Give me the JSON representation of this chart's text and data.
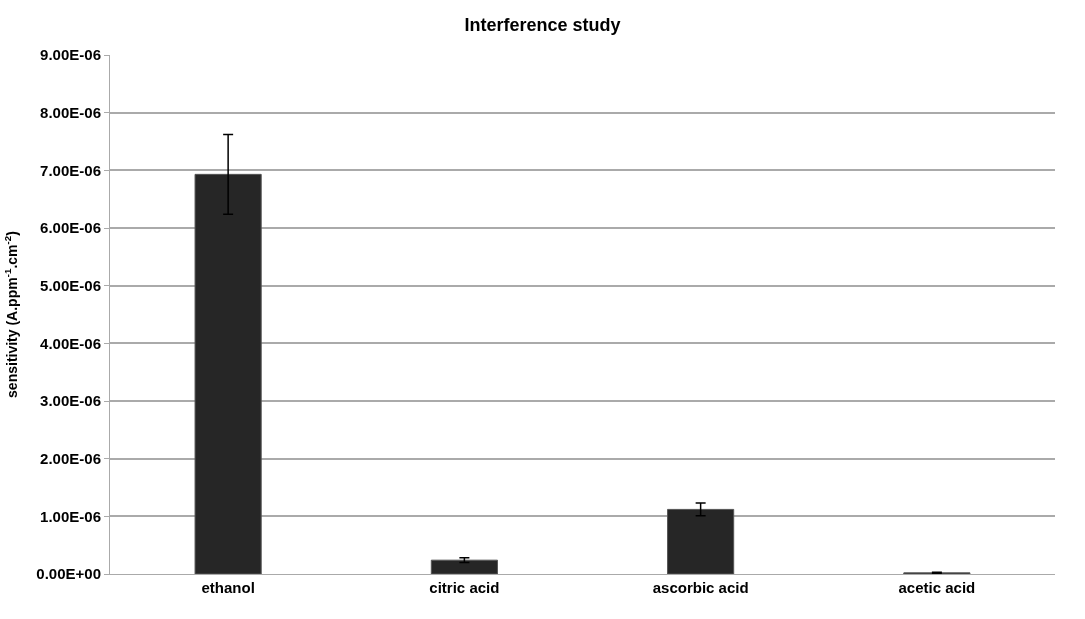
{
  "chart_data": {
    "type": "bar",
    "title": "Interference study",
    "ylabel": "sensitivity (A.ppm$^{-1}$.cm$^{-2}$)",
    "categories": [
      "ethanol",
      "citric acid",
      "ascorbic acid",
      "acetic acid"
    ],
    "values": [
      6.93e-06,
      2.4e-07,
      1.12e-06,
      2e-08
    ],
    "errors": [
      6.9e-07,
      4e-08,
      1.1e-07,
      1e-08
    ],
    "color": "#262626",
    "ylim": [
      0,
      9e-06
    ],
    "yticks": [
      {
        "value": 0,
        "label": "0.00E+00"
      },
      {
        "value": 1e-06,
        "label": "1.00E-06"
      },
      {
        "value": 2e-06,
        "label": "2.00E-06"
      },
      {
        "value": 3e-06,
        "label": "3.00E-06"
      },
      {
        "value": 4e-06,
        "label": "4.00E-06"
      },
      {
        "value": 5e-06,
        "label": "5.00E-06"
      },
      {
        "value": 6e-06,
        "label": "6.00E-06"
      },
      {
        "value": 7e-06,
        "label": "7.00E-06"
      },
      {
        "value": 8e-06,
        "label": "8.00E-06"
      },
      {
        "value": 9e-06,
        "label": "9.00E-06"
      }
    ],
    "grid": "y",
    "legend": false
  }
}
